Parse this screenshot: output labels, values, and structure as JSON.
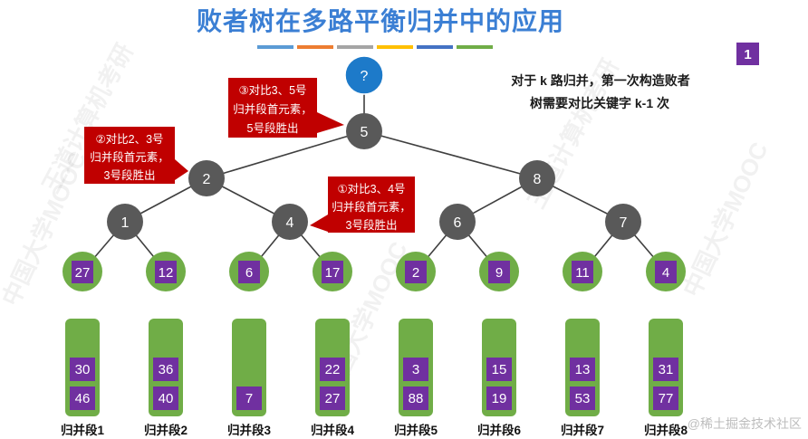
{
  "title": "败者树在多路平衡归并中的应用",
  "page_badge": "1",
  "note": {
    "line1": "对于 k 路归并，第一次构造败者",
    "line2": "树需要对比关键字 k-1 次"
  },
  "colors": {
    "title": "#3b7fd4",
    "title_bars": [
      "#5b9bd5",
      "#ed7d31",
      "#a5a5a5",
      "#ffc000",
      "#4472c4",
      "#70ad47"
    ],
    "badge": "#7030a0",
    "root_node": "#1d7ac9",
    "inner_node": "#595959",
    "leaf_node": "#70ad47",
    "key_box": "#7030a0",
    "callout": "#c00000",
    "segment": "#70ad47"
  },
  "tree": {
    "root": "?",
    "level1": [
      "5"
    ],
    "level2": [
      "2",
      "8"
    ],
    "level3": [
      "1",
      "4",
      "6",
      "7"
    ],
    "leaves": [
      "27",
      "12",
      "6",
      "17",
      "2",
      "9",
      "11",
      "4"
    ]
  },
  "callouts": [
    {
      "lines": [
        "①对比3、4号",
        "归并段首元素，",
        "3号段胜出"
      ]
    },
    {
      "lines": [
        "②对比2、3号",
        "归并段首元素，",
        "3号段胜出"
      ]
    },
    {
      "lines": [
        "③对比3、5号",
        "归并段首元素，",
        "5号段胜出"
      ]
    }
  ],
  "segments": [
    {
      "label": "归并段1",
      "keys": [
        "30",
        "46"
      ]
    },
    {
      "label": "归并段2",
      "keys": [
        "36",
        "40"
      ]
    },
    {
      "label": "归并段3",
      "keys": [
        "7"
      ]
    },
    {
      "label": "归并段4",
      "keys": [
        "22",
        "27"
      ]
    },
    {
      "label": "归并段5",
      "keys": [
        "3",
        "88"
      ]
    },
    {
      "label": "归并段6",
      "keys": [
        "15",
        "19"
      ]
    },
    {
      "label": "归并段7",
      "keys": [
        "13",
        "53"
      ]
    },
    {
      "label": "归并段8",
      "keys": [
        "31",
        "77"
      ]
    }
  ],
  "watermarks": {
    "mooc": "中国大学MOOC",
    "wangdao": "王道计算机考研",
    "corner": "@稀土掘金技术社区"
  }
}
